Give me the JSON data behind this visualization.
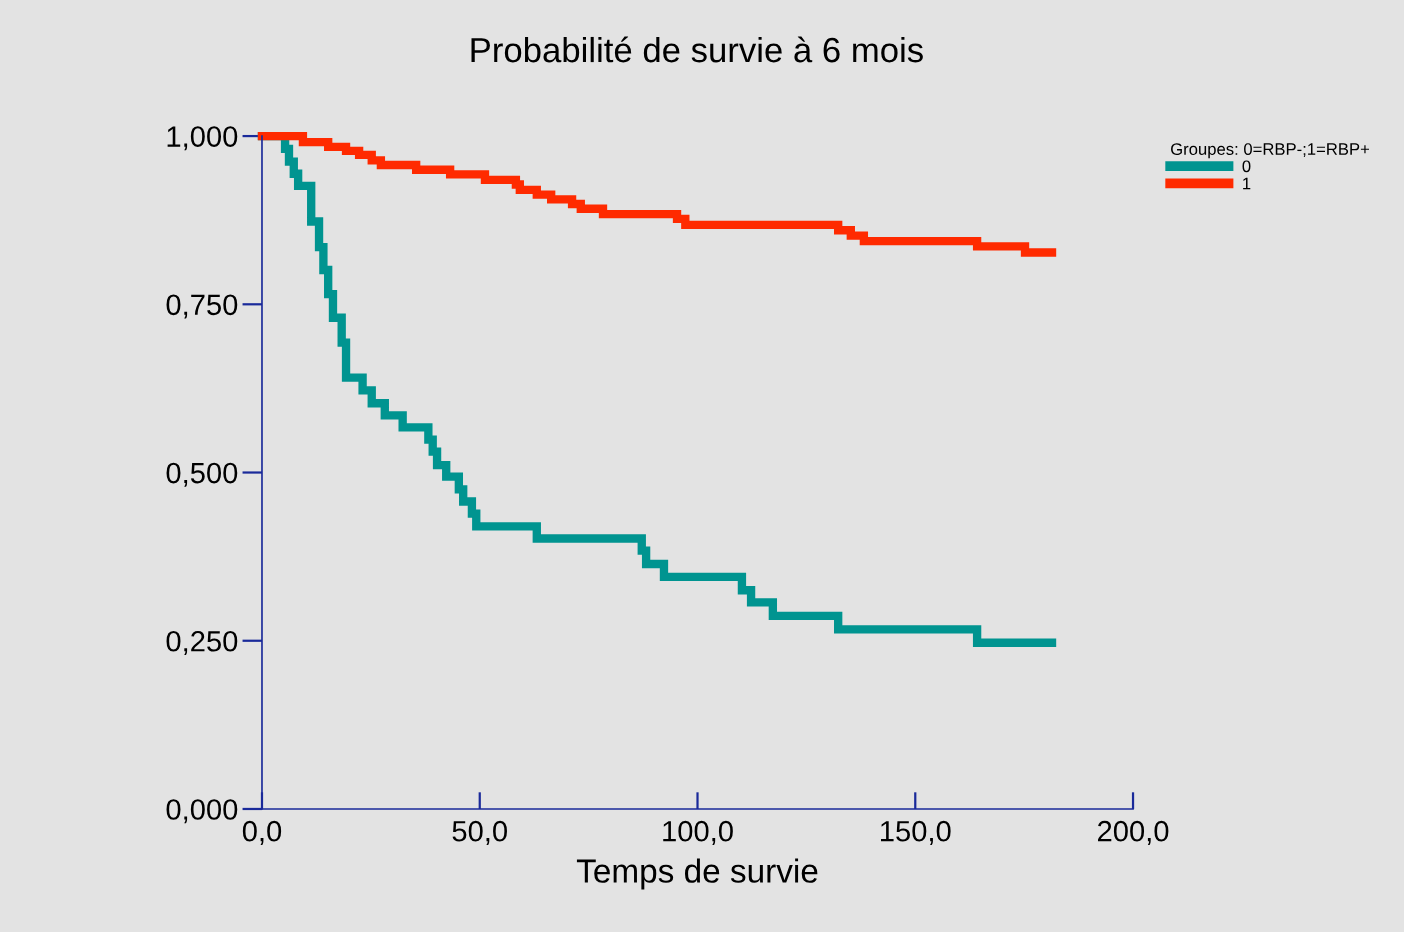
{
  "chart_data": {
    "type": "step",
    "title": "Probabilité de survie à 6 mois",
    "xlabel": "Temps de survie",
    "legend_title": "Groupes: 0=RBP-;1=RBP+",
    "legend": "top right",
    "grid": false,
    "marker": "none",
    "line_style": "solid",
    "xlim": [
      0,
      200
    ],
    "ylim": [
      0,
      1
    ],
    "xticks": [
      {
        "value": 0,
        "label": "0,0"
      },
      {
        "value": 50,
        "label": "50,0"
      },
      {
        "value": 100,
        "label": "100,0"
      },
      {
        "value": 150,
        "label": "150,0"
      },
      {
        "value": 200,
        "label": "200,0"
      }
    ],
    "yticks": [
      {
        "value": 0,
        "label": "0,000"
      },
      {
        "value": 0.25,
        "label": "0,250"
      },
      {
        "value": 0.5,
        "label": "0,500"
      },
      {
        "value": 0.75,
        "label": "0,750"
      },
      {
        "value": 1,
        "label": "1,000"
      }
    ],
    "series": [
      {
        "name": "0",
        "color": "#009490",
        "x": [
          0,
          5.3,
          6.2,
          7.3,
          8.3,
          11.3,
          13.1,
          14.1,
          15.2,
          16.3,
          18.3,
          19.3,
          23.1,
          25.2,
          28.2,
          32.3,
          38.2,
          39.2,
          40.2,
          42.3,
          45.2,
          46.2,
          48.2,
          49.2,
          63.1,
          87.2,
          88.2,
          92.3,
          110.2,
          112.3,
          117.3,
          132.3,
          164.2,
          181.4
        ],
        "values": [
          1.0,
          0.981,
          0.962,
          0.944,
          0.926,
          0.873,
          0.835,
          0.801,
          0.765,
          0.73,
          0.693,
          0.641,
          0.622,
          0.603,
          0.585,
          0.567,
          0.549,
          0.531,
          0.511,
          0.494,
          0.475,
          0.457,
          0.439,
          0.42,
          0.402,
          0.384,
          0.364,
          0.345,
          0.325,
          0.307,
          0.287,
          0.267,
          0.247,
          0.247
        ]
      },
      {
        "name": "1",
        "color": "#ff2a00",
        "x": [
          0,
          9.4,
          15.2,
          19.3,
          22.3,
          25.2,
          27.3,
          35.4,
          43.2,
          51.2,
          58.3,
          59.2,
          63.1,
          66.4,
          71.2,
          73.2,
          78.3,
          95.3,
          97.2,
          132.3,
          135.2,
          138.2,
          164.2,
          175.2,
          181.4
        ],
        "values": [
          1.0,
          0.991,
          0.984,
          0.978,
          0.972,
          0.964,
          0.957,
          0.95,
          0.943,
          0.935,
          0.928,
          0.92,
          0.913,
          0.906,
          0.899,
          0.892,
          0.884,
          0.877,
          0.868,
          0.86,
          0.852,
          0.844,
          0.836,
          0.827,
          0.827
        ]
      }
    ]
  }
}
